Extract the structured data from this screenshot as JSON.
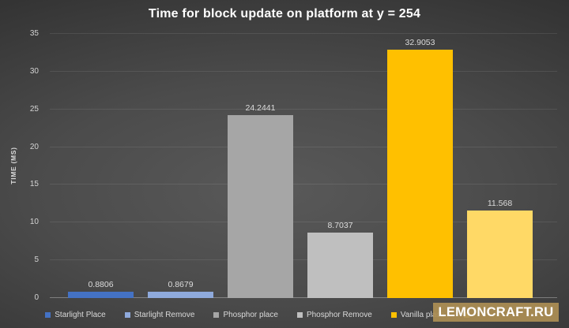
{
  "watermark": {
    "text": "LEMONCRAFT.RU",
    "band_color": "#ac8e54"
  },
  "chart_data": {
    "type": "bar",
    "title": "Time for block update on platform at y = 254",
    "xlabel": "",
    "ylabel": "TIME (MS)",
    "ylim": [
      0,
      35
    ],
    "yticks": [
      0,
      5,
      10,
      15,
      20,
      25,
      30,
      35
    ],
    "grid": true,
    "legend_position": "bottom",
    "series": [
      {
        "name": "Starlight Place",
        "value": 0.8806,
        "label": "0.8806",
        "color": "#4472c4"
      },
      {
        "name": "Starlight Remove",
        "value": 0.8679,
        "label": "0.8679",
        "color": "#8faadc"
      },
      {
        "name": "Phosphor place",
        "value": 24.2441,
        "label": "24.2441",
        "color": "#a6a6a6"
      },
      {
        "name": "Phosphor Remove",
        "value": 8.7037,
        "label": "8.7037",
        "color": "#bfbfbf"
      },
      {
        "name": "Vanilla place",
        "value": 32.9053,
        "label": "32.9053",
        "color": "#ffc000"
      },
      {
        "name": "",
        "value": 11.568,
        "label": "11.568",
        "color": "#ffd966",
        "legend_label_hidden": true
      }
    ]
  }
}
